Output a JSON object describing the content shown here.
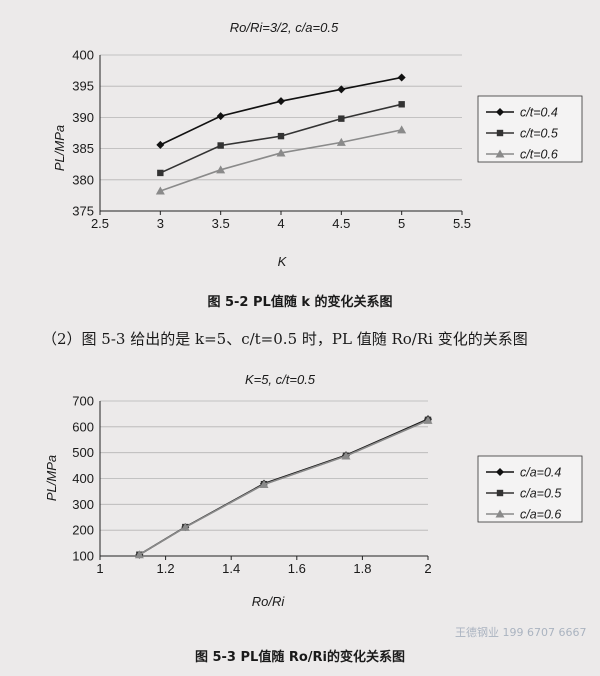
{
  "paragraph": "（2）图 5-3 给出的是 k=5、c/t=0.5 时，PL 值随 Ro/Ri 变化的关系图",
  "stamp": "王德钢业 199 6707 6667",
  "chart_data": [
    {
      "type": "line",
      "title": "Ro/Ri=3/2, c/a=0.5",
      "caption": "图 5-2   PL值随 k 的变化关系图",
      "xlabel": "K",
      "ylabel": "PL/MPa",
      "x_ticks": [
        2.5,
        3,
        3.5,
        4,
        4.5,
        5,
        5.5
      ],
      "y_ticks": [
        375,
        380,
        385,
        390,
        395,
        400
      ],
      "xlim": [
        2.5,
        5.5
      ],
      "ylim": [
        375,
        400
      ],
      "legend_position": "right",
      "x": [
        3,
        3.5,
        4,
        4.5,
        5
      ],
      "series": [
        {
          "name": "c/t=0.4",
          "values": [
            385.6,
            390.2,
            392.6,
            394.5,
            396.4
          ],
          "marker": "diamond",
          "color": "#111111"
        },
        {
          "name": "c/t=0.5",
          "values": [
            381.1,
            385.5,
            387.0,
            389.8,
            392.1
          ],
          "marker": "square",
          "color": "#333333"
        },
        {
          "name": "c/t=0.6",
          "values": [
            378.2,
            381.6,
            384.3,
            386.0,
            388.0
          ],
          "marker": "triangle",
          "color": "#8a8a8a"
        }
      ]
    },
    {
      "type": "line",
      "title": "K=5, c/t=0.5",
      "caption": "图 5-3   PL值随 Ro/Ri的变化关系图",
      "xlabel": "Ro/Ri",
      "ylabel": "PL/MPa",
      "x_ticks": [
        1,
        1.2,
        1.4,
        1.6,
        1.8,
        2
      ],
      "y_ticks": [
        100,
        200,
        300,
        400,
        500,
        600,
        700
      ],
      "xlim": [
        1,
        2
      ],
      "ylim": [
        100,
        700
      ],
      "legend_position": "right",
      "x": [
        1.12,
        1.26,
        1.5,
        1.75,
        2
      ],
      "series": [
        {
          "name": "c/a=0.4",
          "values": [
            105,
            212,
            380,
            490,
            630
          ],
          "marker": "diamond",
          "color": "#111111"
        },
        {
          "name": "c/a=0.5",
          "values": [
            105,
            212,
            378,
            488,
            627
          ],
          "marker": "square",
          "color": "#333333"
        },
        {
          "name": "c/a=0.6",
          "values": [
            105,
            211,
            377,
            487,
            625
          ],
          "marker": "triangle",
          "color": "#8a8a8a"
        }
      ]
    }
  ]
}
